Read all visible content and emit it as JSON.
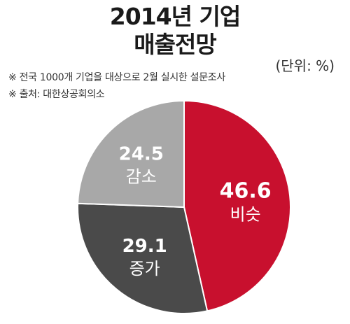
{
  "header": {
    "title_line1": "2014년 기업",
    "title_line2": "매출전망",
    "unit": "(단위: %)"
  },
  "notes": [
    "※ 전국 1000개 기업을 대상으로 2월 실시한 설문조사",
    "※ 출처: 대한상공회의소"
  ],
  "chart_data": {
    "type": "pie",
    "title": "2014년 기업 매출전망",
    "unit": "%",
    "slices": [
      {
        "label": "비슷",
        "value": 46.6,
        "color": "#c8102e"
      },
      {
        "label": "증가",
        "value": 29.1,
        "color": "#4a4a4a"
      },
      {
        "label": "감소",
        "value": 24.5,
        "color": "#a8a8a8"
      }
    ]
  }
}
